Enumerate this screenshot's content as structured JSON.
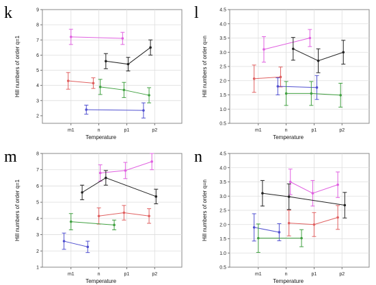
{
  "colors": {
    "magenta": "#e060e0",
    "black": "#222222",
    "red": "#e06060",
    "green": "#40a040",
    "blue": "#5050d0",
    "plot_bg": "#ffffff",
    "frame": "#888888",
    "grid": "#dddddd"
  },
  "chart_data": [
    {
      "panel": "k",
      "type": "line",
      "error_bars": true,
      "grid": true,
      "categories": [
        "m1",
        "n",
        "p1",
        "p2"
      ],
      "xlabel": "Temperature",
      "ylabel": "Hill numbers of order q=1",
      "ylim": [
        1.5,
        9
      ],
      "yticks": [
        2,
        3,
        4,
        5,
        6,
        7,
        8,
        9
      ],
      "series": [
        {
          "color": "magenta",
          "x": [
            0,
            1.85
          ],
          "values": [
            7.2,
            7.1
          ],
          "errors": [
            0.5,
            0.4
          ]
        },
        {
          "color": "black",
          "x": [
            1.25,
            2.05,
            2.85
          ],
          "values": [
            5.6,
            5.4,
            6.5
          ],
          "errors": [
            0.5,
            0.45,
            0.5
          ]
        },
        {
          "color": "red",
          "x": [
            -0.1,
            0.8
          ],
          "values": [
            4.3,
            4.15
          ],
          "errors": [
            0.55,
            0.35
          ]
        },
        {
          "color": "green",
          "x": [
            1.05,
            1.9,
            2.8
          ],
          "values": [
            3.9,
            3.7,
            3.35
          ],
          "errors": [
            0.5,
            0.5,
            0.5
          ]
        },
        {
          "color": "blue",
          "x": [
            0.55,
            2.6
          ],
          "values": [
            2.4,
            2.35
          ],
          "errors": [
            0.3,
            0.5
          ]
        }
      ]
    },
    {
      "panel": "l",
      "type": "line",
      "error_bars": true,
      "grid": true,
      "categories": [
        "m1",
        "n",
        "p1",
        "p2"
      ],
      "xlabel": "Temperature",
      "ylabel": "Hill numbers of order q=n",
      "ylim": [
        0.5,
        4.5
      ],
      "yticks": [
        0.5,
        1.0,
        1.5,
        2.0,
        2.5,
        3.0,
        3.5,
        4.0,
        4.5
      ],
      "series": [
        {
          "color": "magenta",
          "x": [
            0.2,
            1.85
          ],
          "values": [
            3.1,
            3.5
          ],
          "errors": [
            0.45,
            0.3
          ]
        },
        {
          "color": "black",
          "x": [
            1.25,
            2.15,
            3.05
          ],
          "values": [
            3.12,
            2.7,
            3.0
          ],
          "errors": [
            0.4,
            0.42,
            0.42
          ]
        },
        {
          "color": "red",
          "x": [
            -0.15,
            0.8
          ],
          "values": [
            2.07,
            2.13
          ],
          "errors": [
            0.48,
            0.35
          ]
        },
        {
          "color": "blue",
          "x": [
            0.7,
            2.1
          ],
          "values": [
            1.8,
            1.76
          ],
          "errors": [
            0.3,
            0.42
          ]
        },
        {
          "color": "green",
          "x": [
            1.0,
            1.9,
            2.95
          ],
          "values": [
            1.55,
            1.55,
            1.49
          ],
          "errors": [
            0.42,
            0.42,
            0.42
          ]
        }
      ]
    },
    {
      "panel": "m",
      "type": "line",
      "error_bars": true,
      "grid": true,
      "categories": [
        "m1",
        "n",
        "p1",
        "p2"
      ],
      "xlabel": "Temperature",
      "ylabel": "Hill numbers of order q=1",
      "ylim": [
        1,
        8
      ],
      "yticks": [
        1,
        2,
        3,
        4,
        5,
        6,
        7,
        8
      ],
      "series": [
        {
          "color": "magenta",
          "x": [
            1.05,
            1.95,
            2.9
          ],
          "values": [
            6.8,
            6.95,
            7.5
          ],
          "errors": [
            0.5,
            0.5,
            0.5
          ]
        },
        {
          "color": "black",
          "x": [
            0.4,
            1.25,
            3.05
          ],
          "values": [
            5.6,
            6.5,
            5.35
          ],
          "errors": [
            0.45,
            0.45,
            0.45
          ]
        },
        {
          "color": "red",
          "x": [
            1.0,
            1.9,
            2.8
          ],
          "values": [
            4.15,
            4.35,
            4.15
          ],
          "errors": [
            0.5,
            0.45,
            0.45
          ]
        },
        {
          "color": "green",
          "x": [
            0,
            1.55
          ],
          "values": [
            3.8,
            3.6
          ],
          "errors": [
            0.5,
            0.3
          ]
        },
        {
          "color": "blue",
          "x": [
            -0.25,
            0.6
          ],
          "values": [
            2.6,
            2.25
          ],
          "errors": [
            0.5,
            0.35
          ]
        }
      ]
    },
    {
      "panel": "n",
      "type": "line",
      "error_bars": true,
      "grid": true,
      "categories": [
        "m1",
        "n",
        "p1",
        "p2"
      ],
      "xlabel": "Temperature",
      "ylabel": "Hill numbers of order q=n",
      "ylim": [
        0.5,
        4.5
      ],
      "yticks": [
        0.5,
        1.0,
        1.5,
        2.0,
        2.5,
        3.0,
        3.5,
        4.0,
        4.5
      ],
      "series": [
        {
          "color": "magenta",
          "x": [
            1.15,
            1.95,
            2.85
          ],
          "values": [
            3.5,
            3.1,
            3.4
          ],
          "errors": [
            0.45,
            0.45,
            0.45
          ]
        },
        {
          "color": "black",
          "x": [
            0.15,
            1.1,
            3.1
          ],
          "values": [
            3.1,
            2.98,
            2.68
          ],
          "errors": [
            0.45,
            0.45,
            0.45
          ]
        },
        {
          "color": "red",
          "x": [
            1.1,
            2.0,
            2.85
          ],
          "values": [
            2.05,
            2.0,
            2.25
          ],
          "errors": [
            0.45,
            0.42,
            0.42
          ]
        },
        {
          "color": "blue",
          "x": [
            -0.15,
            0.75
          ],
          "values": [
            1.9,
            1.73
          ],
          "errors": [
            0.48,
            0.3
          ]
        },
        {
          "color": "green",
          "x": [
            0,
            1.55
          ],
          "values": [
            1.52,
            1.52
          ],
          "errors": [
            0.5,
            0.3
          ]
        }
      ]
    }
  ]
}
